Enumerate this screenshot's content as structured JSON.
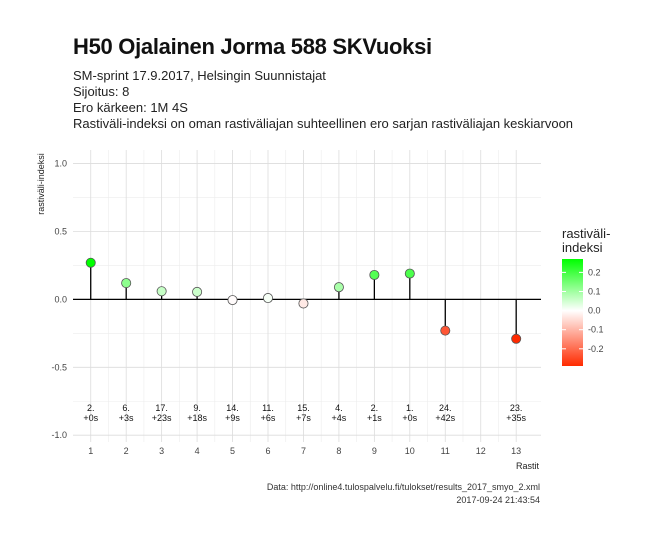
{
  "header": {
    "title": "H50 Ojalainen Jorma 588 SKVuoksi",
    "subtitle_lines": [
      "SM-sprint 17.9.2017, Helsingin Suunnistajat",
      "Sijoitus: 8",
      "Ero kärkeen: 1M 4S",
      "Rastiväli-indeksi on oman rastiväliajan suhteellinen ero sarjan rastiväliajan keskiarvoon"
    ]
  },
  "caption": {
    "source": "Data: http://online4.tulospalvelu.fi/tulokset/results_2017_smyo_2.xml",
    "timestamp": "2017-09-24 21:43:54"
  },
  "chart_data": {
    "type": "lollipop",
    "xlabel": "Rastit",
    "ylabel": "rastiväli-indeksi",
    "x_ticks": [
      1,
      2,
      3,
      4,
      5,
      6,
      7,
      8,
      9,
      10,
      11,
      12,
      13
    ],
    "y_ticks": [
      -1.0,
      -0.5,
      0.0,
      0.5,
      1.0
    ],
    "y_tick_labels": [
      "-1.0",
      "-0.5",
      "0.0",
      "0.5",
      "1.0"
    ],
    "xlim": [
      0.5,
      13.7
    ],
    "ylim": [
      -1.05,
      1.1
    ],
    "grid": true,
    "points": [
      {
        "x": 1,
        "y": 0.27,
        "rank": "2.",
        "diff": "+0s"
      },
      {
        "x": 2,
        "y": 0.12,
        "rank": "6.",
        "diff": "+3s"
      },
      {
        "x": 3,
        "y": 0.06,
        "rank": "17.",
        "diff": "+23s"
      },
      {
        "x": 4,
        "y": 0.055,
        "rank": "9.",
        "diff": "+18s"
      },
      {
        "x": 5,
        "y": -0.005,
        "rank": "14.",
        "diff": "+9s"
      },
      {
        "x": 6,
        "y": 0.01,
        "rank": "11.",
        "diff": "+6s"
      },
      {
        "x": 7,
        "y": -0.03,
        "rank": "15.",
        "diff": "+7s"
      },
      {
        "x": 8,
        "y": 0.09,
        "rank": "4.",
        "diff": "+4s"
      },
      {
        "x": 9,
        "y": 0.18,
        "rank": "2.",
        "diff": "+1s"
      },
      {
        "x": 10,
        "y": 0.19,
        "rank": "1.",
        "diff": "+0s"
      },
      {
        "x": 11,
        "y": -0.23,
        "rank": "24.",
        "diff": "+42s"
      },
      {
        "x": 13,
        "y": -0.29,
        "rank": "23.",
        "diff": "+35s"
      }
    ],
    "legend": {
      "title_lines": [
        "rastiväli-",
        "indeksi"
      ],
      "position": "right",
      "range": [
        -0.29,
        0.27
      ],
      "ticks": [
        0.2,
        0.1,
        0.0,
        -0.1,
        -0.2
      ],
      "tick_labels": [
        "0.2",
        "0.1",
        "0.0",
        "-0.1",
        "-0.2"
      ],
      "colors": {
        "high": "#00ff00",
        "mid": "#ffffff",
        "low": "#ff2a00"
      }
    }
  }
}
